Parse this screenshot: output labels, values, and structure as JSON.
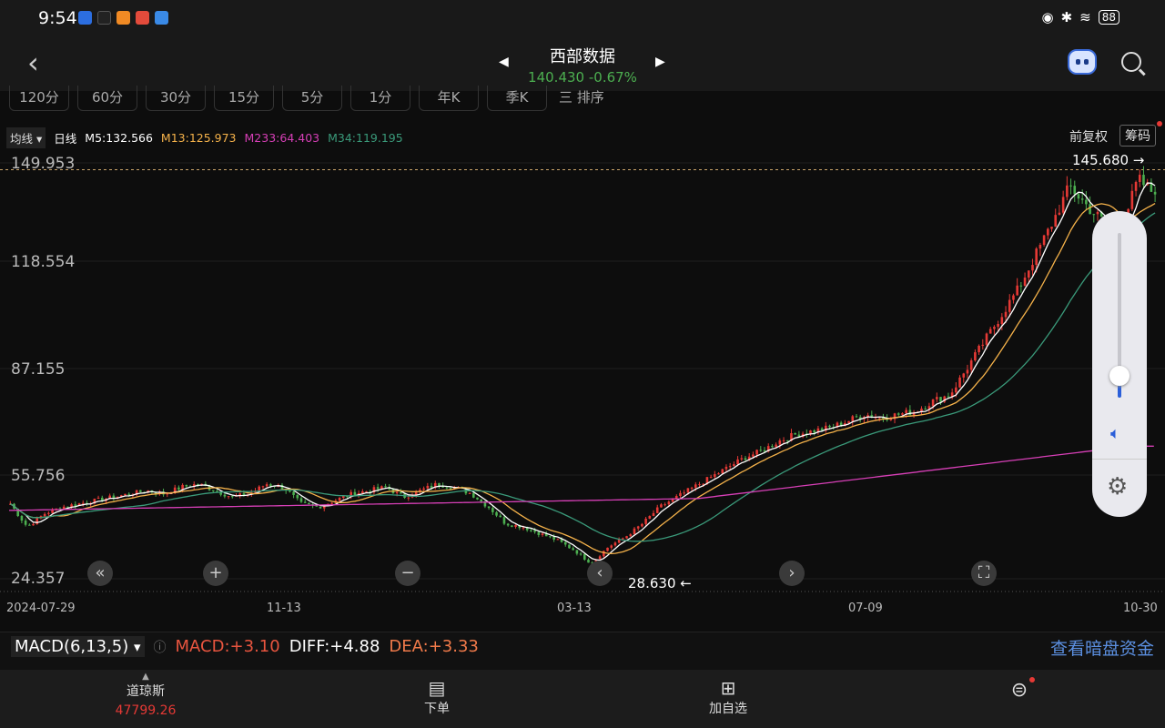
{
  "status": {
    "time": "9:54",
    "battery": "88"
  },
  "header": {
    "title": "西部数据",
    "price": "140.430",
    "change": "-0.67%"
  },
  "periods": [
    "120分",
    "60分",
    "30分",
    "15分",
    "5分",
    "1分",
    "年K",
    "季K"
  ],
  "sort_label": "三 排序",
  "ma": {
    "selector": "均线",
    "period": "日线",
    "m5": "M5:132.566",
    "m13": "M13:125.973",
    "m233": "M233:64.403",
    "m34": "M34:119.195"
  },
  "adjust": "前复权",
  "chips": "筹码",
  "chart_data": {
    "type": "candlestick",
    "y_ticks": [
      "149.953",
      "118.554",
      "87.155",
      "55.756",
      "24.357"
    ],
    "ylim": [
      24.357,
      149.953
    ],
    "x_ticks": [
      "2024-07-29",
      "11-13",
      "03-13",
      "07-09",
      "10-30"
    ],
    "high_label": "145.680",
    "low_label": "28.630",
    "close_path": [
      47,
      40,
      44,
      46,
      47,
      48,
      49,
      50,
      51,
      50,
      52,
      53,
      51,
      49,
      50,
      53,
      52,
      47,
      46,
      48,
      50,
      51,
      52,
      49,
      51,
      53,
      52,
      50,
      46,
      41,
      40,
      38,
      36,
      33,
      29,
      34,
      37,
      41,
      46,
      49,
      52,
      55,
      58,
      61,
      63,
      66,
      68,
      69,
      70,
      72,
      74,
      73,
      74,
      75,
      78,
      80,
      88,
      96,
      104,
      112,
      122,
      132,
      143,
      137,
      132,
      130,
      145,
      140.43
    ],
    "colors": {
      "up": "#e53935",
      "down": "#4caf50",
      "m5": "#ffffff",
      "m13": "#f5b24a",
      "m233": "#d63fb6",
      "m34": "#3a9a7a"
    }
  },
  "macd": {
    "selector": "MACD(6,13,5)",
    "macd": "MACD:+3.10",
    "diff": "DIFF:+4.88",
    "dea": "DEA:+3.33",
    "dark_pool": "查看暗盘资金"
  },
  "bottom": {
    "index_name": "道琼斯",
    "index_value": "47799.26",
    "order": "下单",
    "watch": "加自选"
  }
}
